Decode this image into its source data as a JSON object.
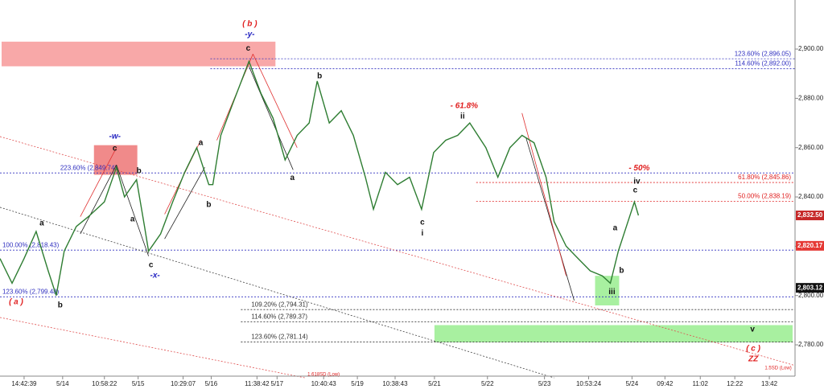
{
  "chart_data": {
    "type": "line",
    "xlim": [
      0,
      198
    ],
    "ylim": [
      2767.3,
      2919.9
    ],
    "xticks": [
      {
        "value": 6,
        "label": "14:42:39"
      },
      {
        "value": 15.6,
        "label": "5/14"
      },
      {
        "value": 26,
        "label": "10:58:22"
      },
      {
        "value": 34.4,
        "label": "5/15"
      },
      {
        "value": 45.6,
        "label": "10:29:07"
      },
      {
        "value": 52.6,
        "label": "5/16"
      },
      {
        "value": 64,
        "label": "11:38:42"
      },
      {
        "value": 69,
        "label": "5/17"
      },
      {
        "value": 80.6,
        "label": "10:40:43"
      },
      {
        "value": 89,
        "label": "5/19"
      },
      {
        "value": 98.4,
        "label": "10:38:43"
      },
      {
        "value": 108.2,
        "label": "5/21"
      },
      {
        "value": 121.4,
        "label": "5/22"
      },
      {
        "value": 135.6,
        "label": "5/23"
      },
      {
        "value": 146.6,
        "label": "10:53:24"
      },
      {
        "value": 157.4,
        "label": "5/24"
      },
      {
        "value": 165.6,
        "label": "09:42"
      },
      {
        "value": 174.4,
        "label": "11:02"
      },
      {
        "value": 183,
        "label": "12:22"
      },
      {
        "value": 191.6,
        "label": "13:42"
      }
    ],
    "yticks": [
      {
        "value": 2780,
        "label": "2,780.00"
      },
      {
        "value": 2800,
        "label": "2,800.00"
      },
      {
        "value": 2820,
        "label": "2,820.00"
      },
      {
        "value": 2840,
        "label": "2,840.00"
      },
      {
        "value": 2860,
        "label": "2,860.00"
      },
      {
        "value": 2880,
        "label": "2,880.00"
      },
      {
        "value": 2900,
        "label": "2,900.00"
      }
    ],
    "series": [
      {
        "color": "#2e7d32",
        "x": [
          0,
          3,
          6,
          9,
          12,
          14,
          16,
          19,
          22,
          26,
          29,
          31,
          34,
          36,
          37,
          40,
          43,
          46,
          49,
          52,
          53,
          55,
          58,
          62,
          65,
          68,
          71,
          74,
          77,
          79,
          82,
          85,
          88,
          91,
          93,
          96,
          99,
          102,
          105,
          108,
          111,
          114,
          117,
          121,
          124,
          127,
          130,
          133,
          136,
          138,
          141,
          144,
          147,
          150,
          152,
          154,
          156,
          158,
          159
        ],
        "values": [
          2815,
          2805,
          2815,
          2826,
          2810,
          2800,
          2818,
          2828,
          2832,
          2838,
          2852,
          2840,
          2847,
          2828,
          2818,
          2825,
          2838,
          2850,
          2860,
          2845,
          2845,
          2865,
          2878,
          2895,
          2882,
          2872,
          2855,
          2865,
          2870,
          2887,
          2870,
          2875,
          2865,
          2848,
          2835,
          2850,
          2845,
          2848,
          2835,
          2858,
          2863,
          2865,
          2870,
          2860,
          2848,
          2860,
          2865,
          2862,
          2848,
          2830,
          2820,
          2815,
          2810,
          2808,
          2805,
          2818,
          2828,
          2838,
          2832.5
        ]
      }
    ],
    "zones": [
      {
        "x": [
          0.4,
          68.6
        ],
        "price": [
          2893,
          2903
        ],
        "color": "#f8a8a8"
      },
      {
        "x": [
          23.4,
          34.2
        ],
        "price": [
          2849,
          2861
        ],
        "color": "#f08a8a"
      },
      {
        "x": [
          148.2,
          154.2
        ],
        "price": [
          2796,
          2808
        ],
        "color": "#a8f0a0"
      },
      {
        "x": [
          108.2,
          197.4
        ],
        "price": [
          2781,
          2788
        ],
        "color": "#a8f0a0"
      }
    ],
    "lines": [
      {
        "x": [
          0,
          198
        ],
        "price": [
          2864.5,
          2771.6
        ],
        "color": "#e05050",
        "dash": "dotted"
      },
      {
        "x": [
          0,
          138
        ],
        "price": [
          2835.8,
          2766.6
        ],
        "color": "#444444",
        "dash": "dotted"
      },
      {
        "x": [
          0,
          76
        ],
        "price": [
          2791.1,
          2766.6
        ],
        "color": "#e05050",
        "dash": "dotted"
      },
      {
        "x": [
          20,
          29
        ],
        "price": [
          2825,
          2853
        ],
        "color": "#222222",
        "dash": "solid"
      },
      {
        "x": [
          29,
          37
        ],
        "price": [
          2853,
          2816
        ],
        "color": "#222222",
        "dash": "solid"
      },
      {
        "x": [
          20,
          29
        ],
        "price": [
          2832,
          2860
        ],
        "color": "#e03030",
        "dash": "solid"
      },
      {
        "x": [
          41,
          51
        ],
        "price": [
          2823,
          2852
        ],
        "color": "#222222",
        "dash": "solid"
      },
      {
        "x": [
          41,
          50
        ],
        "price": [
          2833,
          2863
        ],
        "color": "#e03030",
        "dash": "solid"
      },
      {
        "x": [
          54,
          63
        ],
        "price": [
          2863,
          2898
        ],
        "color": "#e03030",
        "dash": "solid"
      },
      {
        "x": [
          62,
          73
        ],
        "price": [
          2893,
          2851
        ],
        "color": "#222222",
        "dash": "solid"
      },
      {
        "x": [
          63,
          74
        ],
        "price": [
          2898,
          2860
        ],
        "color": "#e03030",
        "dash": "solid"
      },
      {
        "x": [
          131,
          143
        ],
        "price": [
          2864,
          2798
        ],
        "color": "#222222",
        "dash": "solid"
      },
      {
        "x": [
          130,
          141
        ],
        "price": [
          2874,
          2808
        ],
        "color": "#e03030",
        "dash": "solid"
      }
    ],
    "levels": [
      {
        "label": "123.60% (2,896.05)",
        "price": 2896.05,
        "color": "#3030c0",
        "from": 52.4,
        "at": 197,
        "anchor": "end"
      },
      {
        "label": "114.60% (2,892.00)",
        "price": 2892.0,
        "color": "#3030c0",
        "from": 52.4,
        "at": 197,
        "anchor": "end"
      },
      {
        "label": "61.80% (2,845.86)",
        "price": 2845.86,
        "color": "#e02020",
        "from": 118.6,
        "at": 197,
        "anchor": "end"
      },
      {
        "label": "50.00% (2,838.19)",
        "price": 2838.19,
        "color": "#e02020",
        "from": 118.6,
        "at": 197,
        "anchor": "end"
      },
      {
        "label": "223.60% (2,849.74)",
        "price": 2849.74,
        "color": "#3030c0",
        "from": 0,
        "at": 15,
        "anchor": "start"
      },
      {
        "label": "100.00% (2,818.43)",
        "price": 2818.43,
        "color": "#3030c0",
        "from": 0,
        "at": 0.6,
        "anchor": "start"
      },
      {
        "label": "123.60% (2,799.48)",
        "price": 2799.48,
        "color": "#3030c0",
        "from": 0,
        "at": 0.6,
        "anchor": "start"
      },
      {
        "label": "109.20% (2,794.31)",
        "price": 2794.31,
        "color": "#333333",
        "from": 60,
        "at": 62.6,
        "anchor": "start"
      },
      {
        "label": "114.60% (2,789.37)",
        "price": 2789.37,
        "color": "#333333",
        "from": 60,
        "at": 62.6,
        "anchor": "start"
      },
      {
        "label": "123.60% (2,781.14)",
        "price": 2781.14,
        "color": "#333333",
        "from": 60,
        "at": 62.6,
        "anchor": "start"
      }
    ],
    "markers": [
      {
        "value": 2832.5,
        "label": "2,832.50",
        "color": "#c62828"
      },
      {
        "value": 2820.17,
        "label": "2,820.17",
        "color": "#e53935"
      },
      {
        "value": 2803.12,
        "label": "2,803.12",
        "color": "#111111"
      }
    ],
    "annotations": [
      {
        "text": "( b )",
        "x": 62.2,
        "price": 2910.1,
        "color": "#e02020"
      },
      {
        "text": "-y-",
        "x": 62.2,
        "price": 2905.9,
        "color": "#2020c0"
      },
      {
        "text": "c",
        "x": 61.8,
        "price": 2900.3
      },
      {
        "text": "b",
        "x": 79.6,
        "price": 2888.9
      },
      {
        "text": "- 61.8%",
        "x": 115.6,
        "price": 2876.9,
        "color": "#e02020"
      },
      {
        "text": "ii",
        "x": 115.2,
        "price": 2872.6
      },
      {
        "text": "-w-",
        "x": 28.6,
        "price": 2864.5,
        "color": "#2020c0"
      },
      {
        "text": "c",
        "x": 28.6,
        "price": 2859.6
      },
      {
        "text": "b",
        "x": 34.6,
        "price": 2850.5
      },
      {
        "text": "a",
        "x": 50,
        "price": 2861.9
      },
      {
        "text": "a",
        "x": 33,
        "price": 2830.9
      },
      {
        "text": "b",
        "x": 52,
        "price": 2836.8
      },
      {
        "text": "a",
        "x": 72.8,
        "price": 2847.8
      },
      {
        "text": "c",
        "x": 37.6,
        "price": 2812.3
      },
      {
        "text": "-x-",
        "x": 38.6,
        "price": 2808.1,
        "color": "#2020c0"
      },
      {
        "text": "a",
        "x": 10.4,
        "price": 2829.3
      },
      {
        "text": "( a )",
        "x": 4,
        "price": 2797.3,
        "color": "#e02020"
      },
      {
        "text": "b",
        "x": 15,
        "price": 2796.0
      },
      {
        "text": "c",
        "x": 105.2,
        "price": 2829.6
      },
      {
        "text": "i",
        "x": 105.2,
        "price": 2825.3
      },
      {
        "text": "- 50%",
        "x": 159.2,
        "price": 2851.7,
        "color": "#e02020"
      },
      {
        "text": "iv",
        "x": 158.6,
        "price": 2846.2
      },
      {
        "text": "c",
        "x": 158.2,
        "price": 2842.6
      },
      {
        "text": "a",
        "x": 153.2,
        "price": 2827.3
      },
      {
        "text": "b",
        "x": 154.8,
        "price": 2810.0
      },
      {
        "text": "iii",
        "x": 152.4,
        "price": 2801.5
      },
      {
        "text": "v",
        "x": 187.4,
        "price": 2786.2
      },
      {
        "text": "( c )",
        "x": 187.6,
        "price": 2778.4,
        "color": "#e02020"
      },
      {
        "text": "ZZ",
        "x": 187.6,
        "price": 2774.2,
        "color": "#e02020"
      },
      {
        "text": "1.618SD (Low)",
        "x": 80.6,
        "price": 2768.0,
        "color": "#e02020",
        "small": true
      },
      {
        "text": "1.5SD (Low)",
        "x": 193.8,
        "price": 2770.6,
        "color": "#e02020",
        "small": true
      }
    ]
  }
}
